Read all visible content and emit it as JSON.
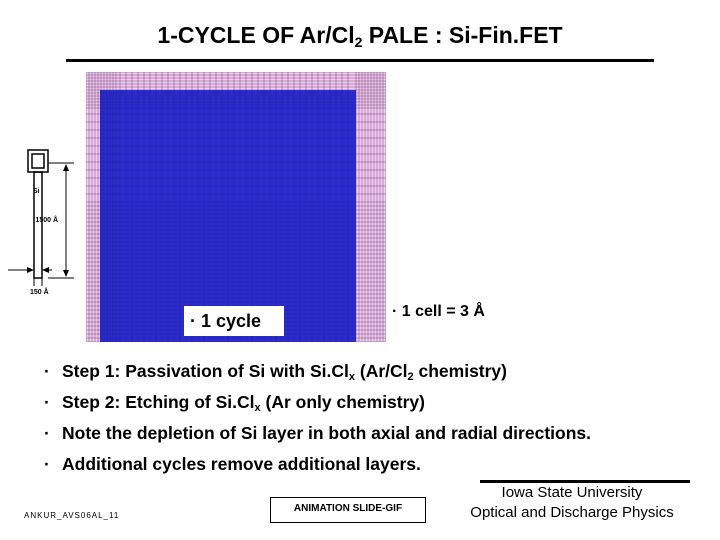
{
  "title": {
    "main": "1-CYCLE OF Ar/Cl",
    "sub": "2",
    "rest": " PALE : Si-Fin.FET"
  },
  "schematic": {
    "si_label": "Si",
    "height_label": "1500 Å",
    "width_label": "150 Å"
  },
  "simulation": {
    "cycle_label": "1 cycle",
    "cell_note": "1 cell = 3 Å",
    "colors": {
      "mesh_bg": "#f7c7f7",
      "silicon": "#2b2bd0",
      "grid": "#000000"
    }
  },
  "bullets": [
    {
      "pre": "Step 1: Passivation of Si with Si.Cl",
      "s1": "x",
      "mid": " (Ar/Cl",
      "s2": "2",
      "post": " chemistry)"
    },
    {
      "pre": "Step 2: Etching of Si.Cl",
      "s1": "x",
      "mid": " (Ar only chemistry)",
      "s2": "",
      "post": ""
    },
    {
      "pre": "Note the depletion of Si layer in both axial and radial directions.",
      "s1": "",
      "mid": "",
      "s2": "",
      "post": ""
    },
    {
      "pre": "Additional cycles remove additional layers.",
      "s1": "",
      "mid": "",
      "s2": "",
      "post": ""
    }
  ],
  "bullet_symbol": "·",
  "footer": {
    "slide_id": "ANKUR_AVS06AL_11",
    "animation_label": "ANIMATION SLIDE-GIF",
    "university": "Iowa State University",
    "lab": "Optical and Discharge Physics"
  }
}
